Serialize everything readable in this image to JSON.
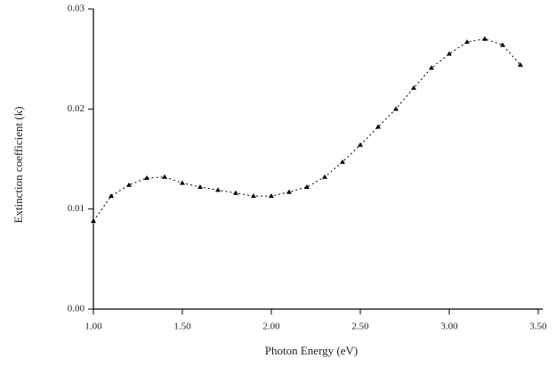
{
  "chart_data": {
    "type": "line",
    "x_label": "Photon Energy (eV)",
    "y_label": "Extinction coefficient (k)",
    "x": [
      1.0,
      1.1,
      1.2,
      1.3,
      1.4,
      1.5,
      1.6,
      1.7,
      1.8,
      1.9,
      2.0,
      2.1,
      2.2,
      2.3,
      2.4,
      2.5,
      2.6,
      2.7,
      2.8,
      2.9,
      3.0,
      3.1,
      3.2,
      3.3,
      3.4
    ],
    "series": [
      {
        "color": "#000000",
        "values": [
          0.0088,
          0.0113,
          0.0124,
          0.0131,
          0.0132,
          0.0126,
          0.0122,
          0.0119,
          0.0116,
          0.0113,
          0.0113,
          0.0117,
          0.0122,
          0.0132,
          0.0147,
          0.0164,
          0.0182,
          0.02,
          0.0221,
          0.0241,
          0.0255,
          0.0267,
          0.027,
          0.0264,
          0.0244
        ]
      }
    ],
    "xlim": [
      1.0,
      3.5
    ],
    "ylim": [
      0.0,
      0.03
    ],
    "xticks": [
      {
        "value": 1.0,
        "label": "1.00"
      },
      {
        "value": 1.5,
        "label": "1.50"
      },
      {
        "value": 2.0,
        "label": "2.00"
      },
      {
        "value": 2.5,
        "label": "2.50"
      },
      {
        "value": 3.0,
        "label": "3.00"
      },
      {
        "value": 3.5,
        "label": "3.50"
      }
    ],
    "yticks": [
      {
        "value": 0.0,
        "label": "0.00"
      },
      {
        "value": 0.01,
        "label": "0.01"
      },
      {
        "value": 0.02,
        "label": "0.02"
      },
      {
        "value": 0.03,
        "label": "0.03"
      }
    ]
  }
}
